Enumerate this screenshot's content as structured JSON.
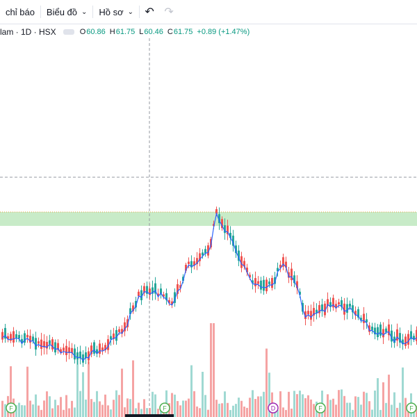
{
  "toolbar": {
    "indicators_label": "chỉ báo",
    "chart_menu_label": "Biểu đồ",
    "profile_menu_label": "Hồ sơ",
    "undo_icon": "undo-icon",
    "redo_icon": "redo-icon"
  },
  "legend": {
    "symbol": "lam · 1D · HSX",
    "open_label": "O",
    "open_value": "60.86",
    "high_label": "H",
    "high_value": "61.75",
    "low_label": "L",
    "low_value": "60.46",
    "close_label": "C",
    "close_value": "61.75",
    "change": "+0.89 (+1.47%)"
  },
  "markers": [
    "F",
    "F",
    "D",
    "F",
    "F"
  ],
  "colors": {
    "up": "#26a69a",
    "down": "#ef5350",
    "up_volume": "#9fd9d2",
    "down_volume": "#f5a3a3",
    "zone": "#c8ebc8",
    "ma_line": "#2962ff"
  }
}
